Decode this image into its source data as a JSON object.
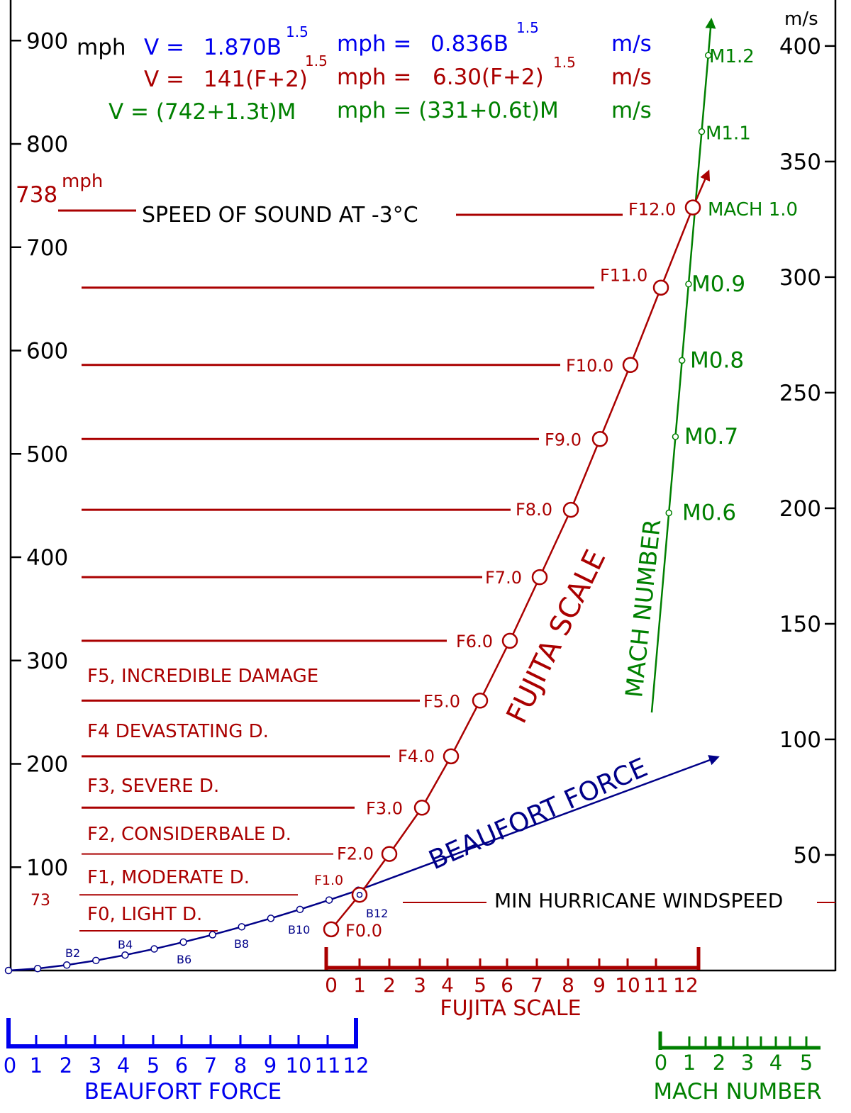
{
  "chart_data": {
    "type": "line",
    "title": "",
    "left_axis": {
      "unit_label": "mph",
      "ticks": [
        100,
        200,
        300,
        400,
        500,
        600,
        700,
        800,
        900
      ],
      "tick_labels": [
        "100",
        "200",
        "300",
        "400",
        "500",
        "600",
        "700",
        "800",
        "900"
      ]
    },
    "right_axis": {
      "unit_label": "m/s",
      "ticks": [
        50,
        100,
        150,
        200,
        250,
        300,
        350,
        400
      ],
      "tick_labels": [
        "50",
        "100",
        "150",
        "200",
        "250",
        "300",
        "350",
        "400"
      ]
    },
    "formulas": {
      "beaufort": {
        "v": "V =",
        "c1": "1.870B",
        "e1": "1.5",
        "u1": "mph =",
        "c2": "0.836B",
        "e2": "1.5",
        "u2": "m/s",
        "color": "#0000ee"
      },
      "fujita": {
        "v": "V =",
        "c1": "141(F+2)",
        "e1": "1.5",
        "u1": "mph =",
        "c2": "6.30(F+2)",
        "e2": "1.5",
        "u2": "m/s",
        "color": "#aa0000"
      },
      "mach": {
        "v": "V = (742+1.3t)M",
        "u1": "mph = (331+0.6t)M",
        "u2": "m/s",
        "color": "#008000"
      }
    },
    "speed_of_sound": {
      "value": 738,
      "value_label": "738",
      "unit": "mph",
      "label": "SPEED OF SOUND AT -3°C"
    },
    "hurricane": {
      "value": 73,
      "value_label": "73",
      "label": "MIN HURRICANE WINDSPEED"
    },
    "beaufort_series": {
      "name": "BEAUFORT FORCE",
      "color": "#000088",
      "x": [
        0,
        1,
        2,
        3,
        4,
        5,
        6,
        7,
        8,
        9,
        10,
        11,
        12
      ],
      "mph": [
        0,
        1.87,
        5.29,
        9.72,
        14.96,
        20.9,
        27.49,
        34.63,
        42.32,
        50.49,
        59.13,
        68.22,
        77.74
      ],
      "point_labels": {
        "2": "B2",
        "4": "B4",
        "6": "B6",
        "8": "B8",
        "10": "B10",
        "12": "B12"
      }
    },
    "fujita_series": {
      "name": "FUJITA SCALE",
      "color": "#aa0000",
      "x": [
        0,
        1,
        2,
        3,
        4,
        5,
        6,
        7,
        8,
        9,
        10,
        11,
        12
      ],
      "mph": [
        39.88,
        73.27,
        112.8,
        157.6,
        207.3,
        261.2,
        319.1,
        380.7,
        445.9,
        514.4,
        586.1,
        660.9,
        738.5
      ],
      "labels": [
        "F0.0",
        "F1.0",
        "F2.0",
        "F3.0",
        "F4.0",
        "F5.0",
        "F6.0",
        "F7.0",
        "F8.0",
        "F9.0",
        "F10.0",
        "F11.0",
        "F12.0"
      ]
    },
    "mach_series": {
      "name": "MACH NUMBER",
      "color": "#008000",
      "markers": [
        {
          "m": 0.6,
          "label": "M0.6"
        },
        {
          "m": 0.7,
          "label": "M0.7"
        },
        {
          "m": 0.8,
          "label": "M0.8"
        },
        {
          "m": 0.9,
          "label": "M0.9"
        },
        {
          "m": 1.0,
          "label": "MACH  1.0"
        },
        {
          "m": 1.1,
          "label": "M1.1"
        },
        {
          "m": 1.2,
          "label": "M1.2"
        }
      ],
      "mph_per_mach": 738.1
    },
    "damage_categories": [
      {
        "label": "F0, LIGHT D."
      },
      {
        "label": "F1, MODERATE D."
      },
      {
        "label": "F2, CONSIDERBALE D."
      },
      {
        "label": "F3, SEVERE D."
      },
      {
        "label": "F4 DEVASTATING D."
      },
      {
        "label": "F5, INCREDIBLE DAMAGE"
      }
    ],
    "fujita_scale_axis": {
      "ticks": [
        "0",
        "1",
        "2",
        "3",
        "4",
        "5",
        "6",
        "7",
        "8",
        "9",
        "10",
        "11",
        "12"
      ],
      "title": "FUJITA SCALE"
    },
    "beaufort_scale_axis": {
      "ticks": [
        "0",
        "1",
        "2",
        "3",
        "4",
        "5",
        "6",
        "7",
        "8",
        "9",
        "10",
        "11",
        "12"
      ],
      "title": "BEAUFORT FORCE"
    },
    "mach_scale_axis": {
      "ticks": [
        "0",
        "1",
        "2",
        "3",
        "4",
        "5"
      ],
      "title": "MACH NUMBER"
    }
  }
}
